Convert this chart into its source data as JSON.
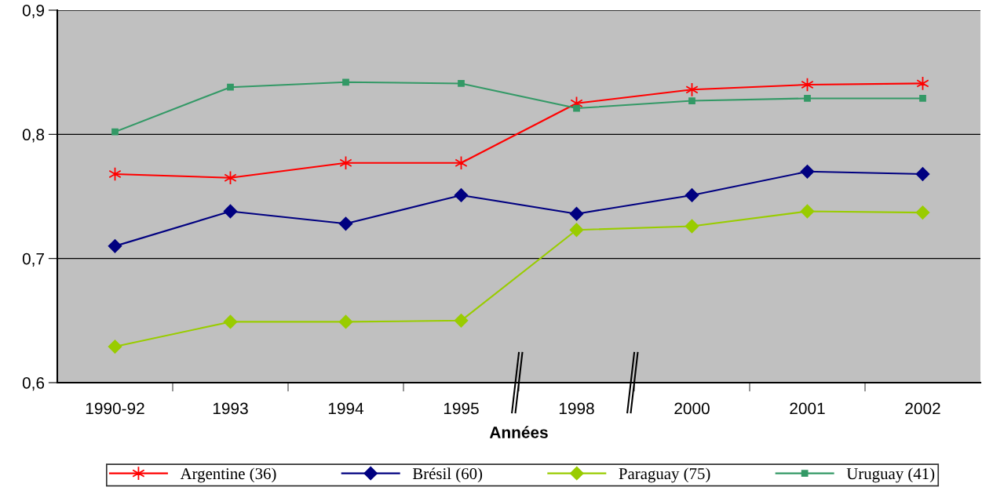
{
  "chart_data": {
    "type": "line",
    "xlabel": "Années",
    "categories": [
      "1990-92",
      "1993",
      "1994",
      "1995",
      "1998",
      "2000",
      "2001",
      "2002"
    ],
    "series": [
      {
        "name": "Argentine (36)",
        "color": "#ff0000",
        "marker": "cross",
        "values": [
          0.768,
          0.765,
          0.777,
          0.777,
          0.825,
          0.836,
          0.84,
          0.841
        ]
      },
      {
        "name": "Brésil (60)",
        "color": "#000080",
        "marker": "diamond",
        "values": [
          0.71,
          0.738,
          0.728,
          0.751,
          0.736,
          0.751,
          0.77,
          0.768
        ]
      },
      {
        "name": "Paraguay (75)",
        "color": "#99cc00",
        "marker": "diamond",
        "values": [
          0.629,
          0.649,
          0.649,
          0.65,
          0.723,
          0.726,
          0.738,
          0.737
        ]
      },
      {
        "name": "Uruguay (41)",
        "color": "#339966",
        "marker": "square",
        "values": [
          0.802,
          0.838,
          0.842,
          0.841,
          0.821,
          0.827,
          0.829,
          0.829
        ]
      }
    ],
    "ylim": [
      0.6,
      0.9
    ],
    "yticks": [
      {
        "value": 0.6,
        "label": "0,6"
      },
      {
        "value": 0.7,
        "label": "0,7"
      },
      {
        "value": 0.8,
        "label": "0,8"
      },
      {
        "value": 0.9,
        "label": "0,9"
      }
    ],
    "grid": "y",
    "legend": "bottom",
    "line_style": "solid"
  }
}
